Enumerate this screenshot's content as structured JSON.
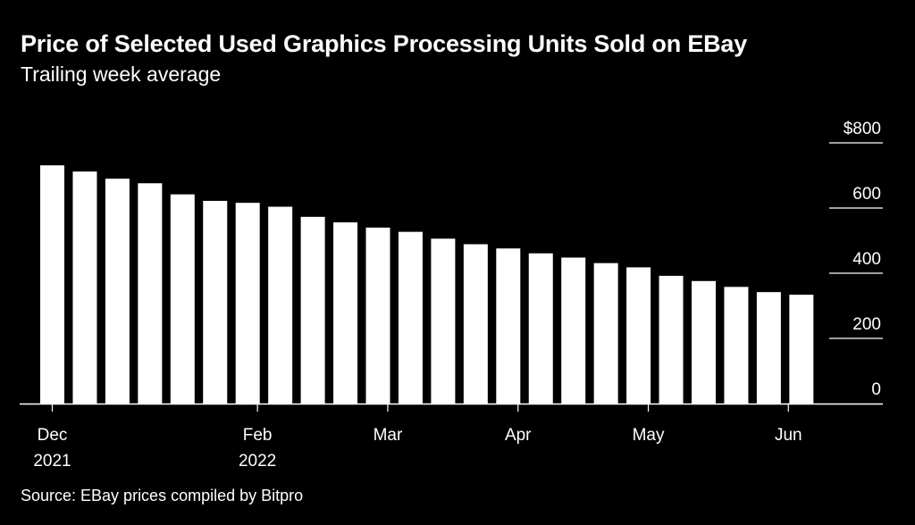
{
  "header": {
    "title": "Price of Selected Used Graphics Processing Units Sold on EBay",
    "subtitle": "Trailing week average"
  },
  "footer": {
    "source": "Source: EBay prices compiled by Bitpro"
  },
  "colors": {
    "background": "#000000",
    "bar": "#ffffff",
    "text": "#ffffff"
  },
  "chart_data": {
    "type": "bar",
    "title": "Price of Selected Used Graphics Processing Units Sold on EBay",
    "subtitle": "Trailing week average",
    "xlabel": "",
    "ylabel": "",
    "ylim": [
      0,
      800
    ],
    "y_axis_position": "right",
    "y_ticks": [
      {
        "value": 800,
        "label": "$800"
      },
      {
        "value": 600,
        "label": "600"
      },
      {
        "value": 400,
        "label": "400"
      },
      {
        "value": 200,
        "label": "200"
      },
      {
        "value": 0,
        "label": "0"
      }
    ],
    "x_ticks": [
      {
        "index": 0,
        "label": "Dec",
        "sublabel": "2021"
      },
      {
        "index": 6.3,
        "label": "Feb",
        "sublabel": "2022"
      },
      {
        "index": 10.3,
        "label": "Mar",
        "sublabel": ""
      },
      {
        "index": 14.3,
        "label": "Apr",
        "sublabel": ""
      },
      {
        "index": 18.3,
        "label": "May",
        "sublabel": ""
      },
      {
        "index": 22.6,
        "label": "Jun",
        "sublabel": ""
      }
    ],
    "grid": false,
    "values": [
      731,
      712,
      690,
      676,
      642,
      622,
      616,
      604,
      573,
      556,
      540,
      527,
      506,
      489,
      476,
      461,
      448,
      431,
      418,
      392,
      376,
      358,
      342,
      334
    ]
  }
}
